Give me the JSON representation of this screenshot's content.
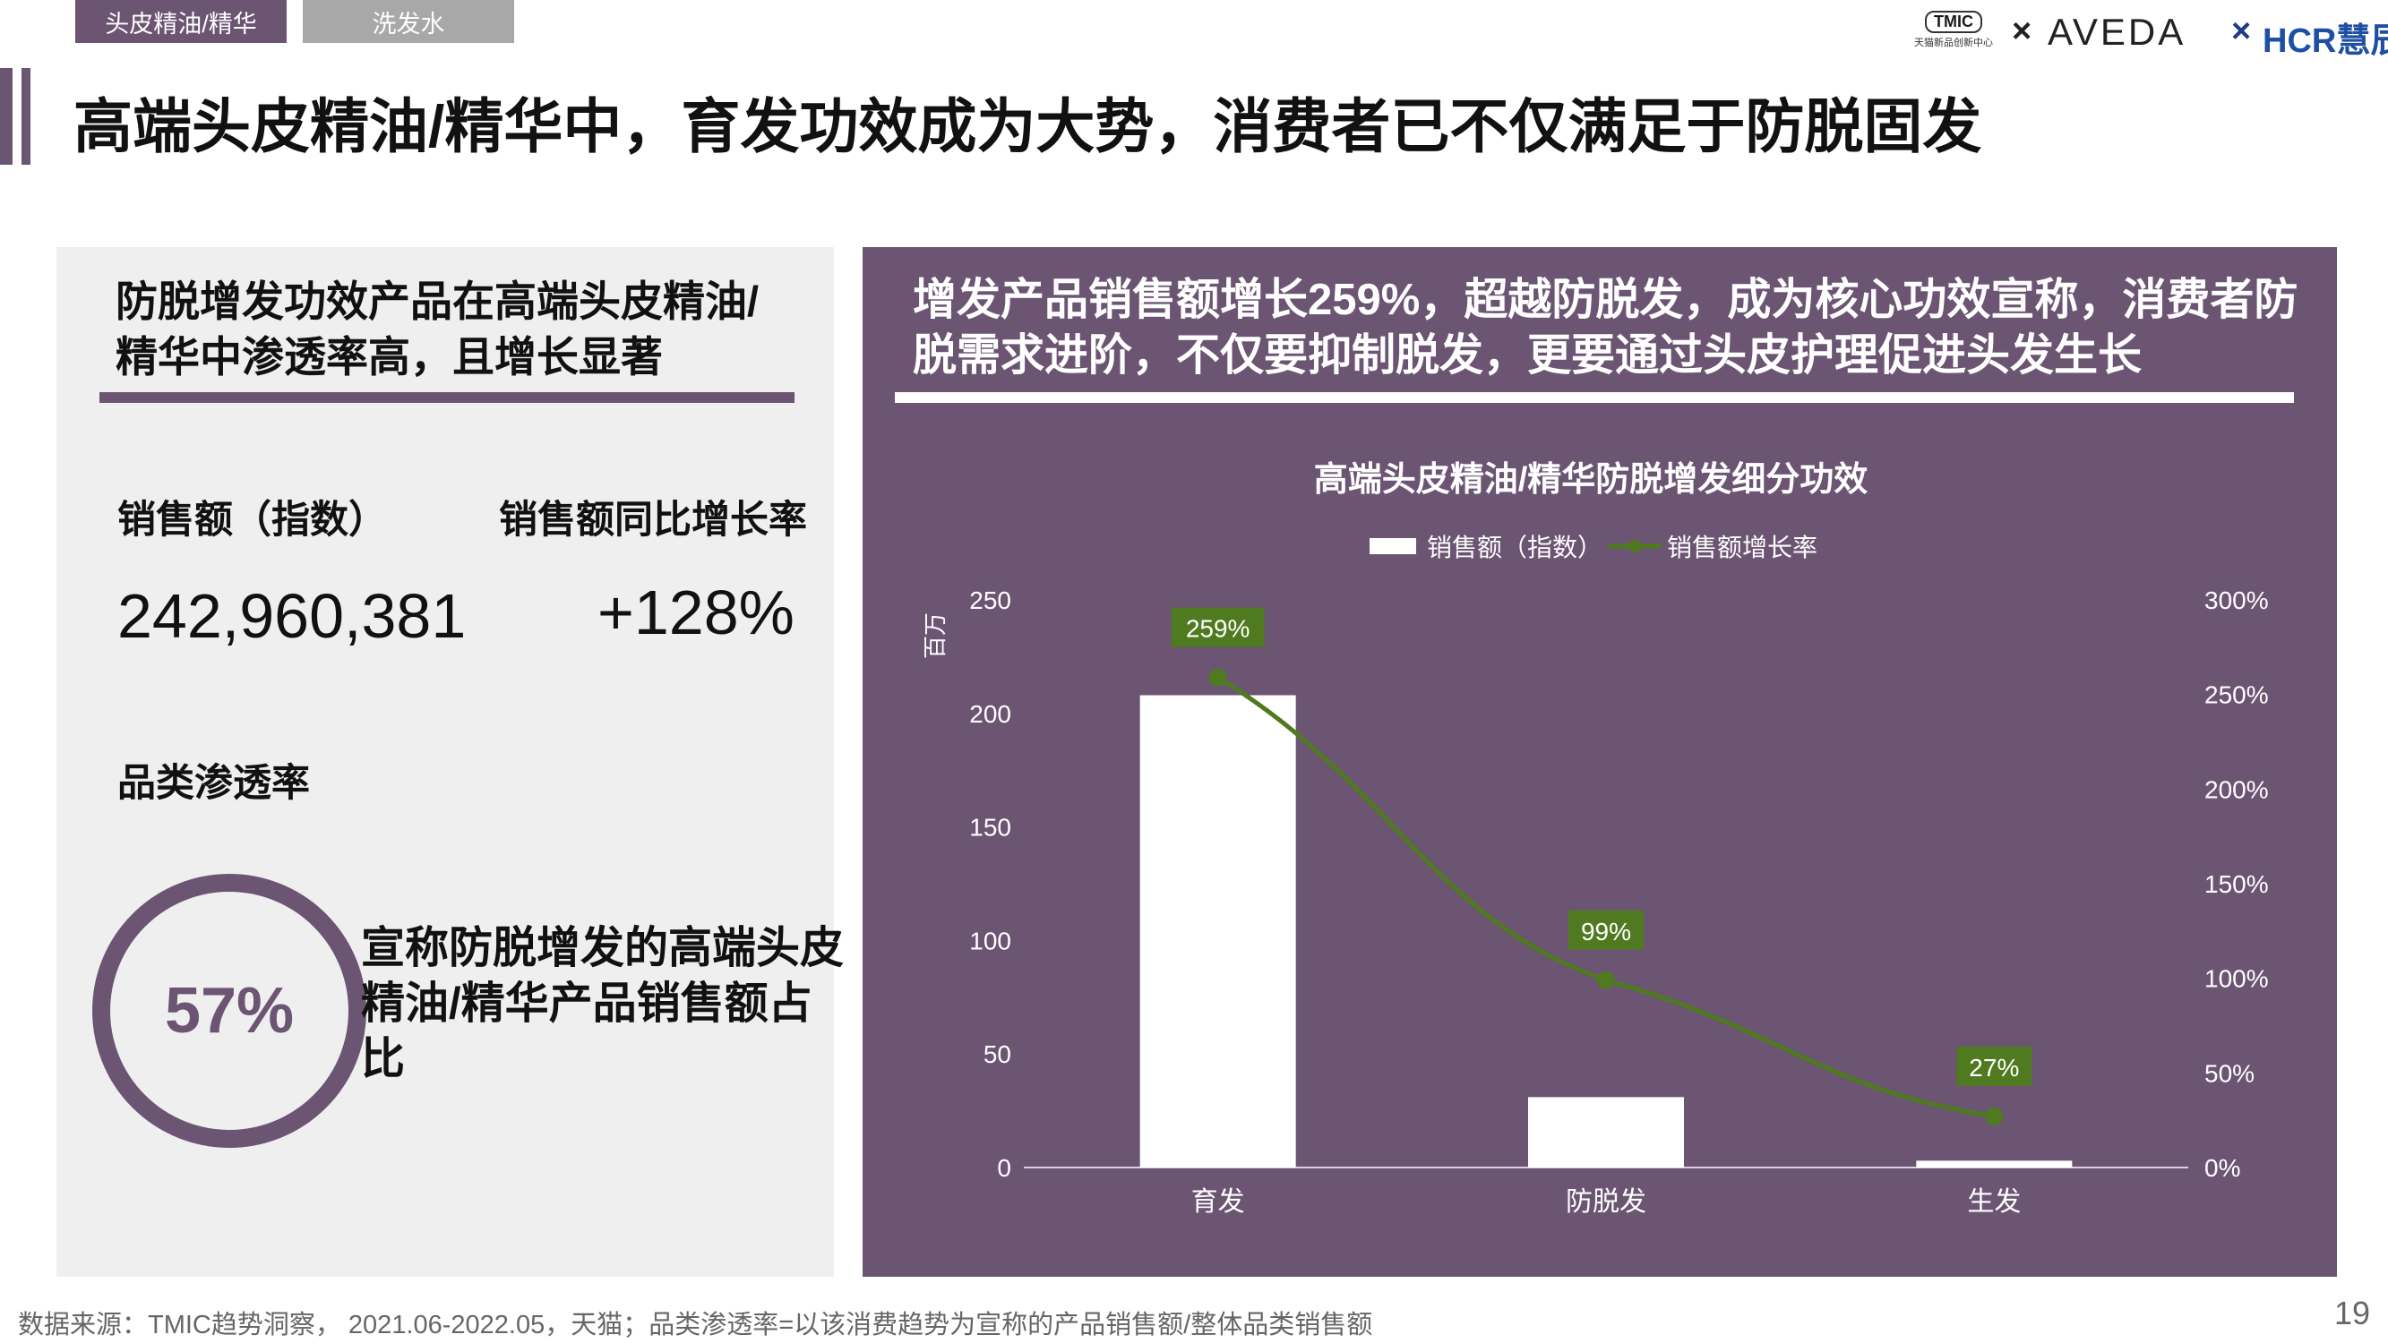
{
  "tabs": [
    {
      "label": "头皮精油/精华",
      "active": true
    },
    {
      "label": "洗发水",
      "active": false
    }
  ],
  "logos": {
    "tmic": "TMIC",
    "tmic_sub": "天猫新品创新中心",
    "cross": "×",
    "aveda": "AVEDA",
    "hcr": "HCR慧辰"
  },
  "title": "高端头皮精油/精华中，育发功效成为大势，消费者已不仅满足于防脱固发",
  "left_panel": {
    "heading": "防脱增发功效产品在高端头皮精油/精华中渗透率高，且增长显著",
    "sales_label": "销售额（指数）",
    "sales_value": "242,960,381",
    "growth_label": "销售额同比增长率",
    "growth_value": "+128%",
    "penetration_label": "品类渗透率",
    "penetration_value": "57%",
    "penetration_desc": "宣称防脱增发的高端头皮精油/精华产品销售额占比"
  },
  "right_panel": {
    "heading": "增发产品销售额增长259%，超越防脱发，成为核心功效宣称，消费者防脱需求进阶，不仅要抑制脱发，更要通过头皮护理促进头发生长"
  },
  "chart_data": {
    "type": "bar",
    "title": "高端头皮精油/精华防脱增发细分功效",
    "categories": [
      "育发",
      "防脱发",
      "生发"
    ],
    "series": [
      {
        "name": "销售额（指数）",
        "type": "bar",
        "axis": "left",
        "values": [
          208,
          31,
          3
        ]
      },
      {
        "name": "销售额增长率",
        "type": "line",
        "axis": "right",
        "values": [
          259,
          99,
          27
        ],
        "labels": [
          "259%",
          "99%",
          "27%"
        ]
      }
    ],
    "ylabel": "百万",
    "ylim": [
      0,
      250
    ],
    "yticks": [
      "0",
      "50",
      "100",
      "150",
      "200",
      "250"
    ],
    "y2lim": [
      0,
      300
    ],
    "y2ticks": [
      "0%",
      "50%",
      "100%",
      "150%",
      "200%",
      "250%",
      "300%"
    ],
    "legend": "top",
    "grid": false,
    "colors": {
      "bar": "#ffffff",
      "line": "#4f7a1f",
      "label_bg": "#4f7a1f",
      "text": "#ffffff"
    }
  },
  "footer": "数据来源：TMIC趋势洞察， 2021.06-2022.05，天猫；品类渗透率=以该消费趋势为宣称的产品销售额/整体品类销售额",
  "page_number": "19"
}
